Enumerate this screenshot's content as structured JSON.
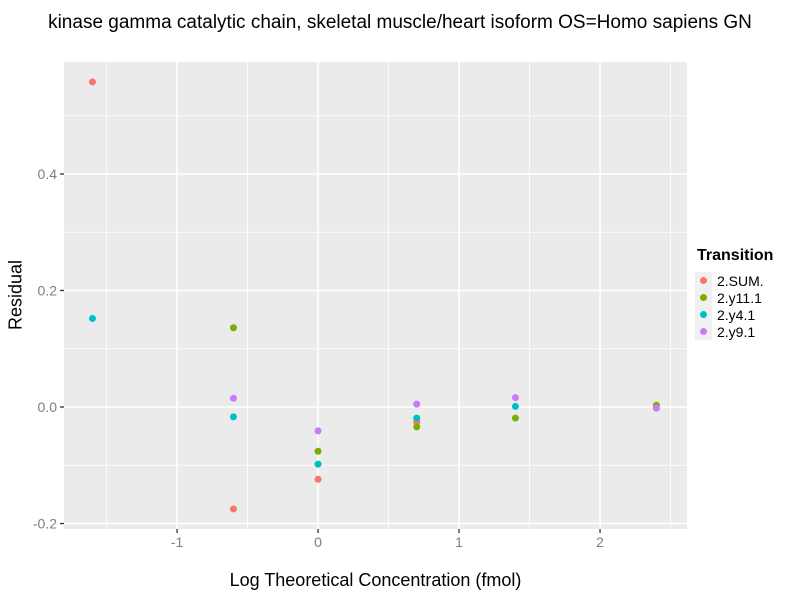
{
  "title": "kinase gamma catalytic chain, skeletal muscle/heart isoform OS=Homo sapiens GN",
  "chart_data": {
    "type": "scatter",
    "xlabel": "Log Theoretical Concentration (fmol)",
    "ylabel": "Residual",
    "xlim": [
      -1.802,
      2.617
    ],
    "ylim": [
      -0.2094,
      0.5922
    ],
    "x_ticks": [
      -1,
      0,
      1,
      2
    ],
    "x_tick_labels": [
      "-1",
      "0",
      "1",
      "2"
    ],
    "y_ticks": [
      -0.2,
      0.0,
      0.2,
      0.4
    ],
    "y_tick_labels": [
      "-0.2",
      "0.0",
      "0.2",
      "0.4"
    ],
    "x_minor": [
      -1.5,
      -0.5,
      0.5,
      1.5,
      2.5
    ],
    "y_minor": [
      -0.1,
      0.1,
      0.3,
      0.5
    ],
    "grid": true,
    "legend_position": "right",
    "legend_title": "Transition",
    "series": [
      {
        "name": "2.SUM.",
        "color": "#F8766D",
        "points": [
          [
            -1.6,
            0.558
          ],
          [
            -0.6,
            -0.175
          ],
          [
            0.0,
            -0.124
          ],
          [
            0.7,
            -0.026
          ]
        ]
      },
      {
        "name": "2.y11.1",
        "color": "#7CAE00",
        "points": [
          [
            -0.6,
            0.136
          ],
          [
            0.0,
            -0.076
          ],
          [
            0.7,
            -0.034
          ],
          [
            1.4,
            -0.019
          ],
          [
            2.4,
            0.003
          ]
        ]
      },
      {
        "name": "2.y4.1",
        "color": "#00BFC4",
        "points": [
          [
            -1.6,
            0.152
          ],
          [
            -0.6,
            -0.017
          ],
          [
            0.0,
            -0.098
          ],
          [
            0.7,
            -0.019
          ],
          [
            1.4,
            0.001
          ]
        ]
      },
      {
        "name": "2.y9.1",
        "color": "#C77CFF",
        "points": [
          [
            -0.6,
            0.015
          ],
          [
            0.0,
            -0.041
          ],
          [
            0.7,
            0.005
          ],
          [
            1.4,
            0.016
          ],
          [
            2.4,
            -0.002
          ]
        ]
      }
    ]
  },
  "colors": {
    "panel_bg": "#EBEBEB",
    "grid": "#FFFFFF",
    "tick_mark": "#333333",
    "tick_label": "#7F7F7F",
    "legend_key_bg": "#F0F0F0",
    "text": "#000000"
  }
}
